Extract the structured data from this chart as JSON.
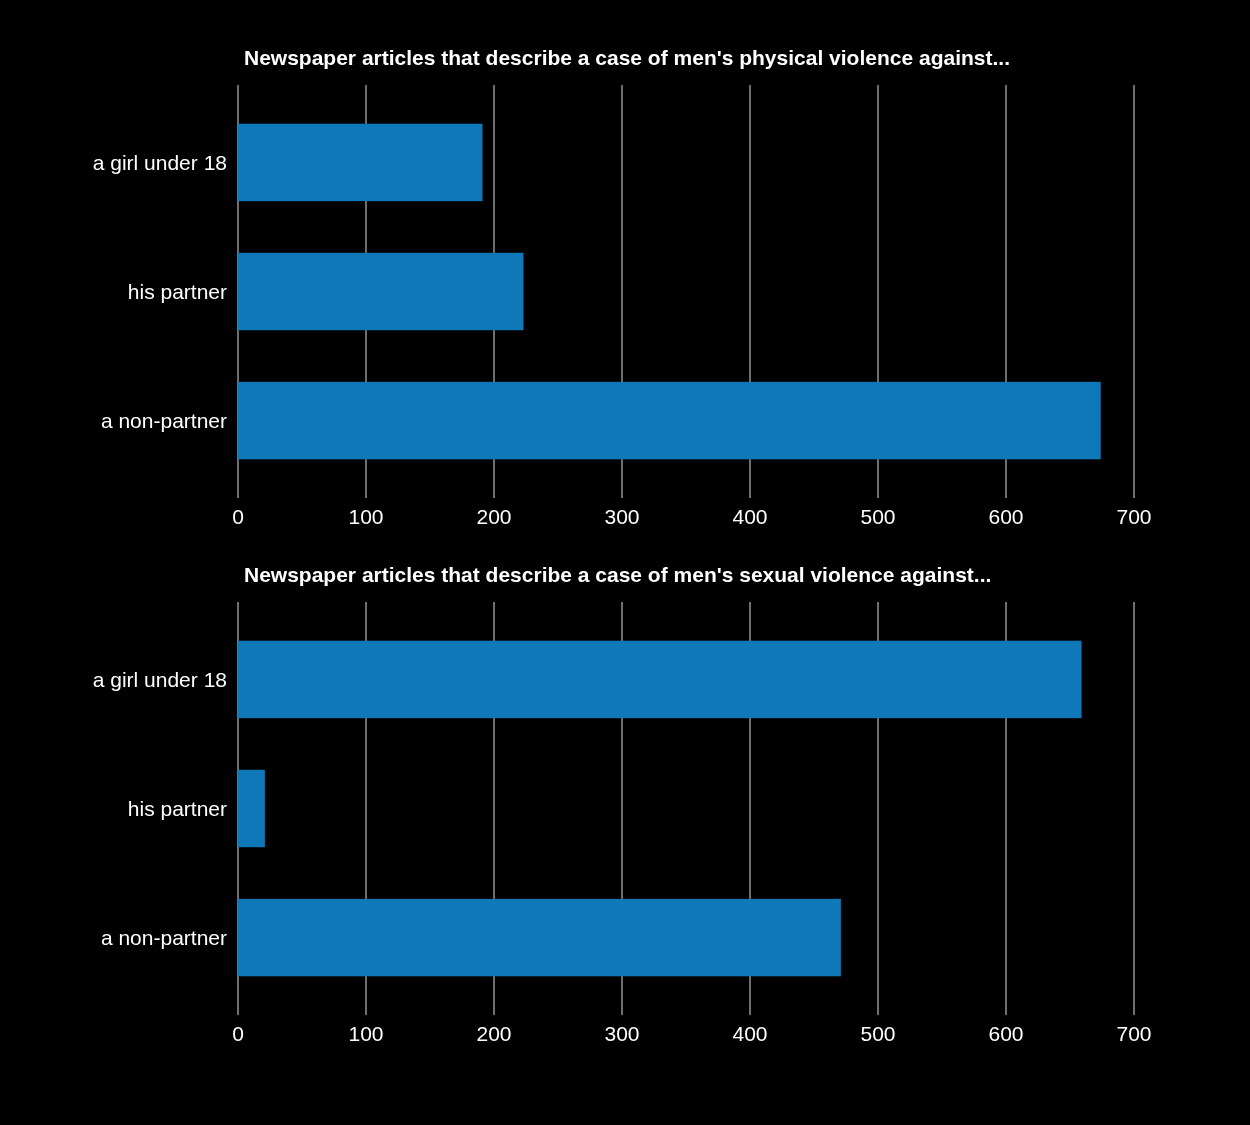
{
  "chart_data": [
    {
      "type": "bar",
      "orientation": "horizontal",
      "title": "Newspaper articles that describe a case of men's physical violence against...",
      "categories": [
        "a girl under 18",
        "his partner",
        "a non-partner"
      ],
      "values": [
        191,
        223,
        674
      ],
      "color": "#0f78b8",
      "xlim": [
        0,
        700
      ],
      "xticks": [
        0,
        100,
        200,
        300,
        400,
        500,
        600,
        700
      ],
      "grid": "x"
    },
    {
      "type": "bar",
      "orientation": "horizontal",
      "title": "Newspaper articles that describe a case of men's sexual violence against...",
      "categories": [
        "a girl under 18",
        "his partner",
        "a non-partner"
      ],
      "values": [
        659,
        21,
        471
      ],
      "color": "#0f78b8",
      "xlim": [
        0,
        700
      ],
      "xticks": [
        0,
        100,
        200,
        300,
        400,
        500,
        600,
        700
      ],
      "grid": "x"
    }
  ]
}
